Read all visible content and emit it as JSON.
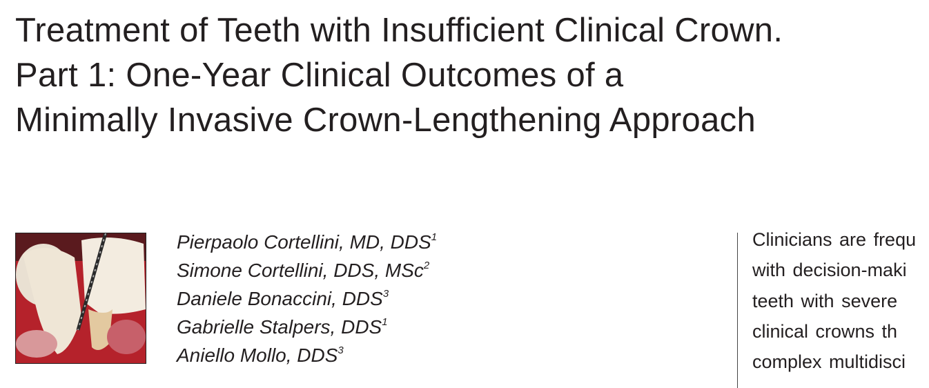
{
  "title": {
    "lines": [
      "Treatment of Teeth with Insufficient Clinical Crown.",
      "Part 1: One-Year Clinical Outcomes of a",
      "Minimally Invasive Crown-Lengthening Approach"
    ]
  },
  "authors": [
    {
      "name": "Pierpaolo Cortellini, MD, DDS",
      "affiliation": "1"
    },
    {
      "name": "Simone Cortellini, DDS, MSc",
      "affiliation": "2"
    },
    {
      "name": "Daniele Bonaccini, DDS",
      "affiliation": "3"
    },
    {
      "name": "Gabrielle Stalpers, DDS",
      "affiliation": "1"
    },
    {
      "name": "Aniello Mollo, DDS",
      "affiliation": "3"
    }
  ],
  "abstract": {
    "lines": [
      "Clinicians are frequ",
      "with decision-maki",
      "teeth with severe",
      "clinical crowns th",
      "complex multidisci"
    ]
  }
}
